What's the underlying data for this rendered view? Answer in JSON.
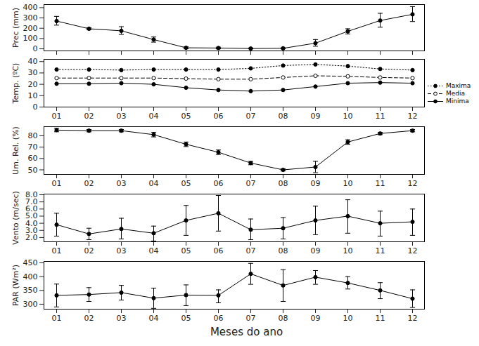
{
  "chart_data": [
    {
      "type": "line",
      "y_label": "Prec (mm)",
      "tick_labels": "y",
      "color": "#000000",
      "marker": "circle",
      "line_style": "solid",
      "categories": [
        "01",
        "02",
        "03",
        "04",
        "05",
        "06",
        "07",
        "08",
        "09",
        "10",
        "11",
        "12"
      ],
      "values": [
        270,
        195,
        175,
        90,
        10,
        8,
        3,
        5,
        55,
        170,
        275,
        335
      ],
      "error_low": [
        230,
        185,
        140,
        65,
        0,
        0,
        0,
        0,
        25,
        145,
        210,
        265
      ],
      "error_high": [
        315,
        205,
        215,
        115,
        20,
        16,
        8,
        10,
        90,
        195,
        345,
        410
      ],
      "ylim": [
        -20,
        430
      ],
      "yticks": [
        0,
        100,
        200,
        300,
        400
      ]
    },
    {
      "type": "line",
      "y_label": "Temp. (ºC)",
      "legend": "lower right",
      "categories": [
        "01",
        "02",
        "03",
        "04",
        "05",
        "06",
        "07",
        "08",
        "09",
        "10",
        "11",
        "12"
      ],
      "series": [
        {
          "name": "Maxima",
          "color": "#000000",
          "marker": "circle",
          "line_style": "dotted",
          "values": [
            33,
            33,
            32.5,
            33,
            33,
            33,
            34,
            36.5,
            37.5,
            36,
            33.5,
            32.5
          ]
        },
        {
          "name": "Media",
          "color": "#000000",
          "marker": "open_circle",
          "line_style": "dashed",
          "values": [
            25.5,
            25.5,
            25.5,
            25.5,
            25,
            24.5,
            24.5,
            26,
            27.5,
            27,
            26,
            25.5
          ]
        },
        {
          "name": "Minima",
          "color": "#000000",
          "marker": "circle",
          "line_style": "solid",
          "values": [
            20.5,
            20.5,
            21,
            20,
            17,
            15,
            14,
            15,
            18,
            21,
            21.5,
            21
          ]
        }
      ],
      "ylim": [
        0,
        42
      ],
      "yticks": [
        0,
        10,
        20,
        30,
        40
      ]
    },
    {
      "type": "line",
      "y_label": "Um. Rel. (%)",
      "color": "#000000",
      "marker": "circle",
      "line_style": "solid",
      "categories": [
        "01",
        "02",
        "03",
        "04",
        "05",
        "06",
        "07",
        "08",
        "09",
        "10",
        "11",
        "12"
      ],
      "values": [
        85,
        84.5,
        84.5,
        81,
        72.5,
        65.5,
        56,
        50,
        52.5,
        74.5,
        82,
        84.5
      ],
      "error_low": [
        83.5,
        83.5,
        83.5,
        79,
        70.5,
        63.5,
        54.5,
        49,
        47.5,
        72.5,
        81,
        83.5
      ],
      "error_high": [
        86.5,
        85.5,
        85.5,
        83,
        74.5,
        67.5,
        57.5,
        51,
        57.5,
        76.5,
        83,
        85.5
      ],
      "ylim": [
        46,
        88
      ],
      "yticks": [
        50,
        60,
        70,
        80
      ]
    },
    {
      "type": "line",
      "y_label": "Vento (m/sec)",
      "color": "#000000",
      "marker": "circle",
      "line_style": "solid",
      "categories": [
        "01",
        "02",
        "03",
        "04",
        "05",
        "06",
        "07",
        "08",
        "09",
        "10",
        "11",
        "12"
      ],
      "values": [
        3.8,
        2.5,
        3.2,
        2.6,
        4.4,
        5.4,
        3.1,
        3.3,
        4.4,
        5.0,
        4.0,
        4.2
      ],
      "error_low": [
        2.2,
        1.7,
        1.8,
        1.5,
        2.3,
        2.9,
        1.7,
        1.8,
        2.4,
        2.6,
        2.2,
        2.3
      ],
      "error_high": [
        5.4,
        3.3,
        4.7,
        3.6,
        6.5,
        7.9,
        4.6,
        4.8,
        6.4,
        7.3,
        5.7,
        6.0
      ],
      "ylim": [
        1.4,
        8.1
      ],
      "yticks": [
        2,
        3,
        4,
        5,
        6,
        7,
        8
      ]
    },
    {
      "type": "line",
      "y_label": "PAR (Wm²)",
      "x_label": "Meses do ano",
      "color": "#000000",
      "marker": "circle",
      "line_style": "solid",
      "categories": [
        "01",
        "02",
        "03",
        "04",
        "05",
        "06",
        "07",
        "08",
        "09",
        "10",
        "11",
        "12"
      ],
      "values": [
        332,
        335,
        342,
        322,
        333,
        332,
        410,
        368,
        398,
        377,
        350,
        320
      ],
      "error_low": [
        290,
        310,
        315,
        285,
        295,
        305,
        372,
        310,
        372,
        355,
        320,
        288
      ],
      "error_high": [
        373,
        360,
        368,
        358,
        370,
        352,
        448,
        425,
        422,
        400,
        378,
        352
      ],
      "ylim": [
        282,
        455
      ],
      "yticks": [
        300,
        350,
        400,
        450
      ]
    }
  ]
}
